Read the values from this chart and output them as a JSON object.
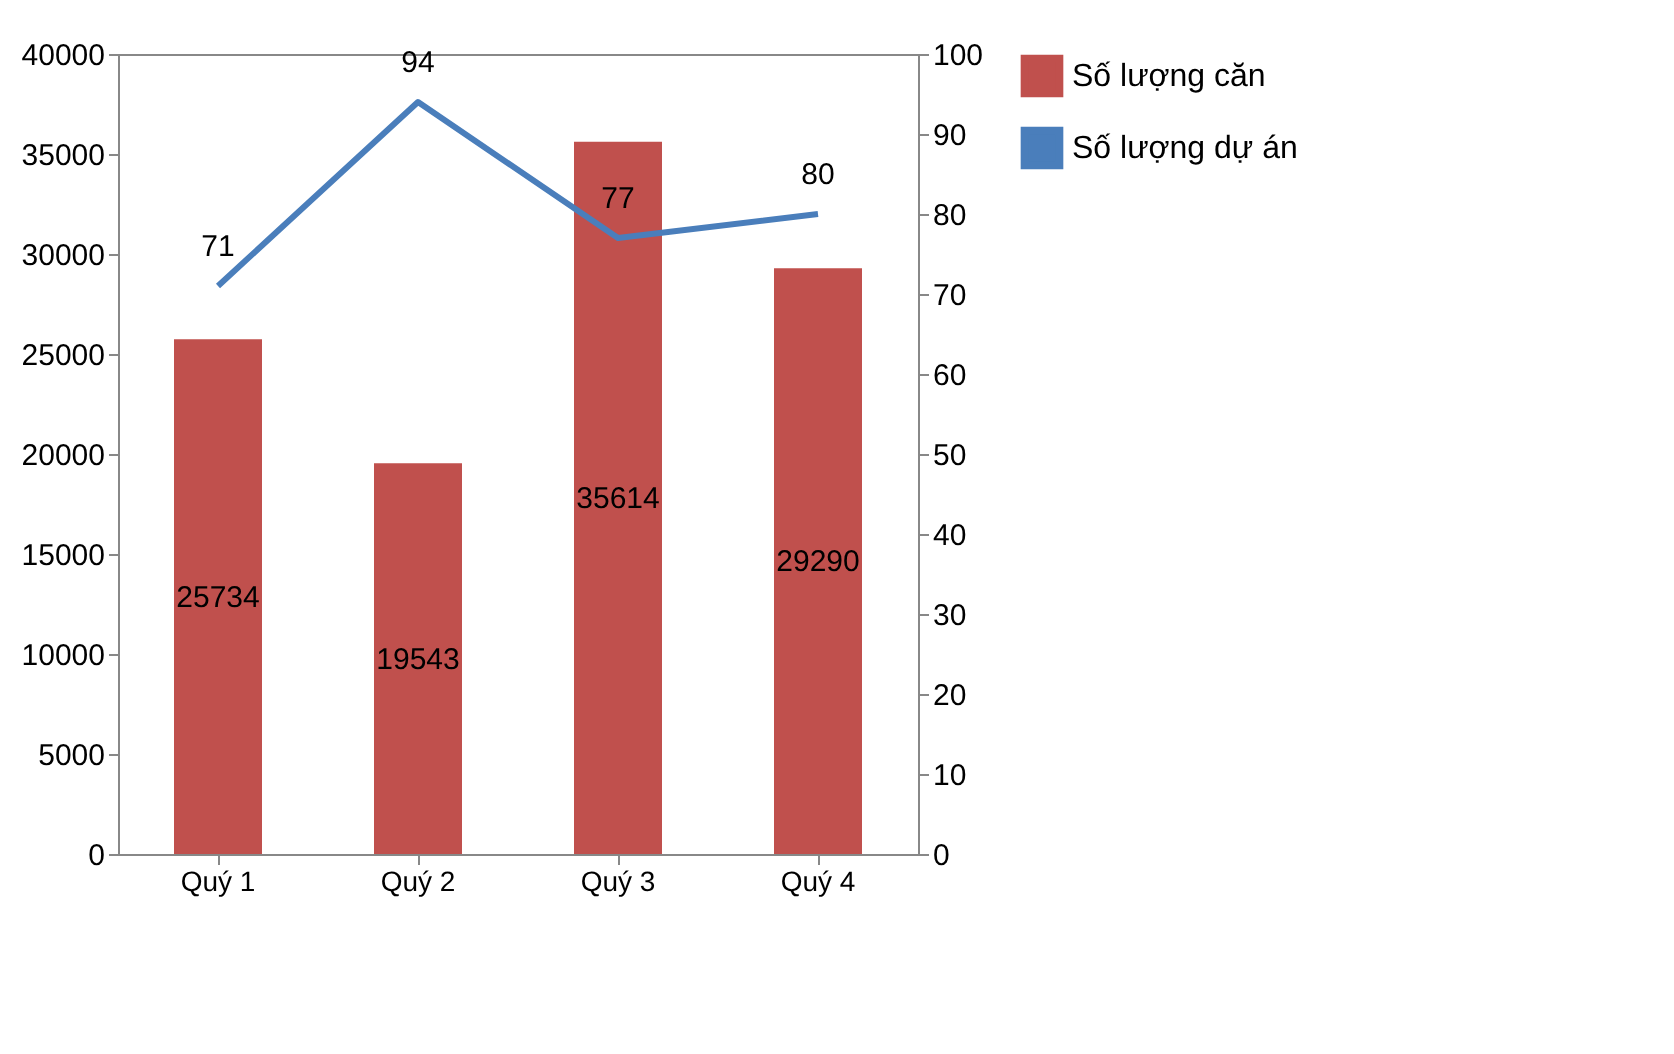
{
  "chart_data": {
    "type": "bar",
    "categories": [
      "Quý 1",
      "Quý 2",
      "Quý 3",
      "Quý 4"
    ],
    "series": [
      {
        "name": "Số lượng căn",
        "color": "#c0504d",
        "values": [
          25734,
          19543,
          35614,
          29290
        ]
      },
      {
        "name": "Số lượng dự án",
        "type": "line",
        "axis": "y2",
        "color": "#4a7ebb",
        "values": [
          71,
          94,
          77,
          80
        ]
      }
    ],
    "ylim": [
      0,
      40000
    ],
    "yticks": [
      0,
      5000,
      10000,
      15000,
      20000,
      25000,
      30000,
      35000,
      40000
    ],
    "y2lim": [
      0,
      100
    ],
    "y2ticks": [
      0,
      10,
      20,
      30,
      40,
      50,
      60,
      70,
      80,
      90,
      100
    ],
    "data_labels": true,
    "grid": false,
    "legend": "right",
    "marker": "none",
    "line_style": "solid"
  }
}
